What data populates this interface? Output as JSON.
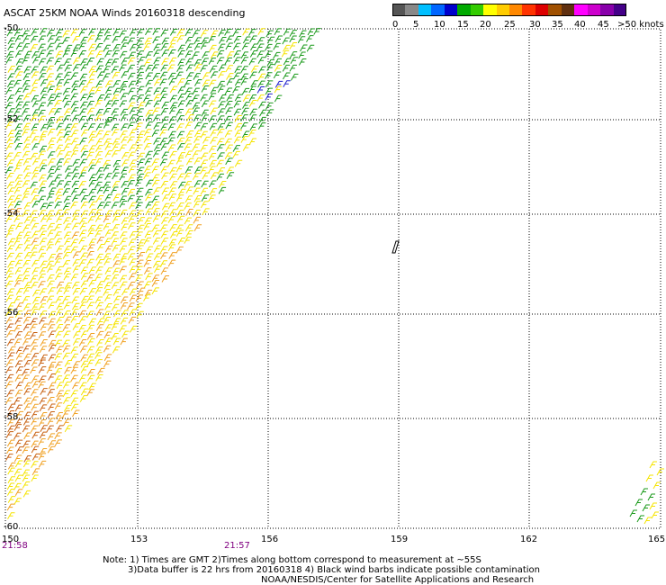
{
  "title": "ASCAT 25KM NOAA Winds 20160318 descending",
  "colorbar": {
    "colors": [
      "#555555",
      "#888888",
      "#00bfff",
      "#0066ff",
      "#0000cc",
      "#00aa00",
      "#33cc00",
      "#ffff00",
      "#ffcc00",
      "#ff8800",
      "#ff3300",
      "#dd0000",
      "#a05000",
      "#603010",
      "#ff00ff",
      "#cc00cc",
      "#8800aa",
      "#440088"
    ],
    "labels": [
      "0",
      "5",
      "10",
      "15",
      "20",
      "25",
      "30",
      "35",
      "40",
      "45",
      ">50 knots"
    ]
  },
  "lat_labels": [
    "-50",
    "-52",
    "-54",
    "-56",
    "-58",
    "-60"
  ],
  "lon_labels": [
    "150",
    "153",
    "156",
    "159",
    "162",
    "165"
  ],
  "time_labels": [
    "21:58",
    "21:57"
  ],
  "notes": [
    "Note: 1) Times are GMT 2)Times along bottom correspond to measurement at ~55S",
    "3)Data buffer is 22 hrs from 20160318 4) Black wind barbs indicate possible contamination",
    "NOAA/NESDIS/Center for Satellite Applications and Research"
  ],
  "barb_colors": {
    "green": "#1a9a1a",
    "yellow": "#f5e400",
    "orange": "#f0a020",
    "darkorange": "#c86010",
    "blue": "#2020cc",
    "black": "#000000"
  }
}
